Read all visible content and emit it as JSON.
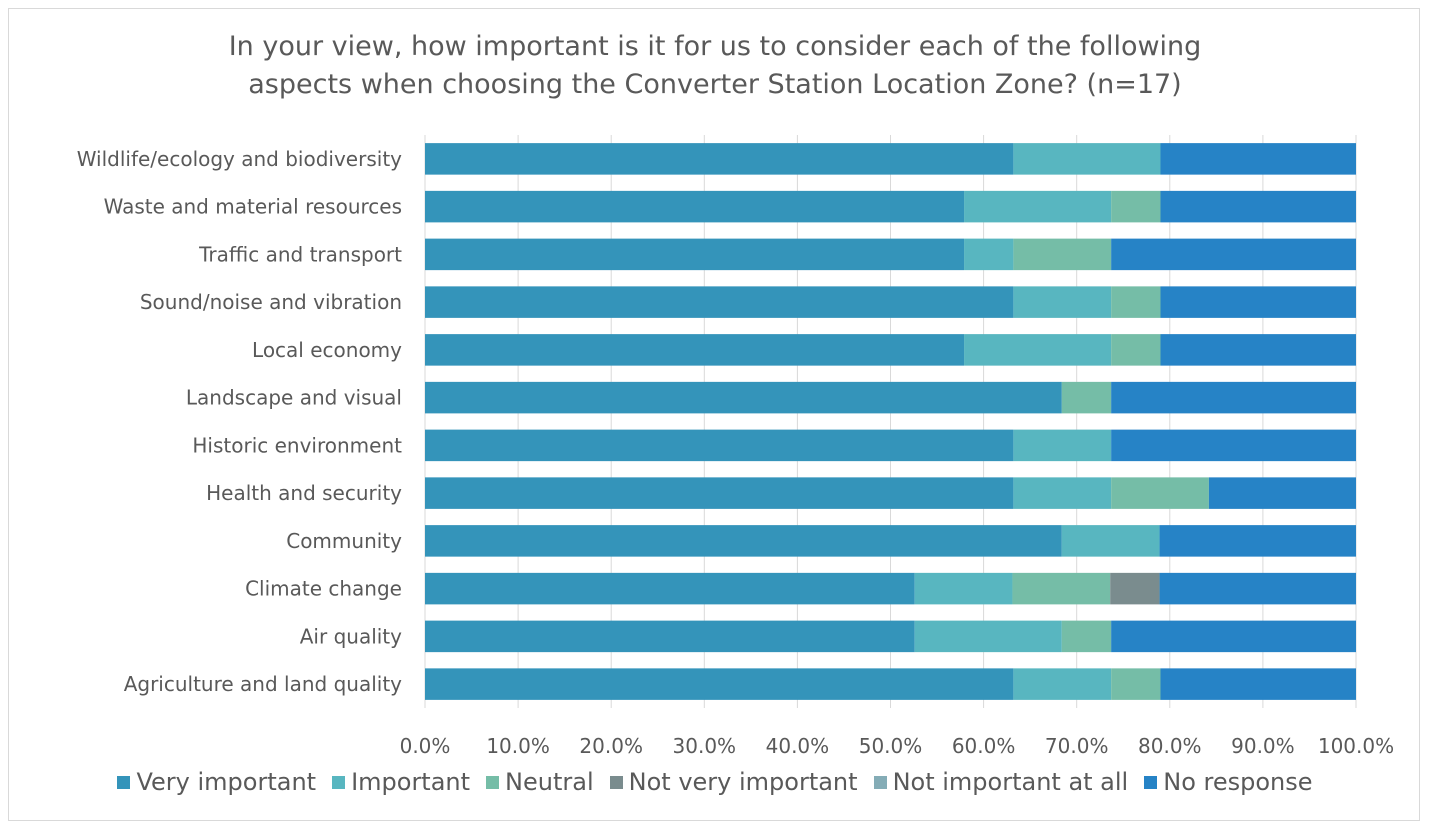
{
  "chart_data": {
    "type": "bar",
    "orientation": "horizontal",
    "stacked": true,
    "title": "In your view, how important is it for us to consider each of the following aspects when choosing the Converter Station Location Zone? (n=17)",
    "title_lines": [
      "In your view, how important is it for us to consider each of the following",
      "aspects when choosing the Converter Station Location Zone? (n=17)"
    ],
    "categories": [
      "Wildlife/ecology and biodiversity",
      "Waste and material resources",
      "Traffic and transport",
      "Sound/noise and vibration",
      "Local economy",
      "Landscape and visual",
      "Historic environment",
      "Health and security",
      "Community",
      "Climate change",
      "Air quality",
      "Agriculture and land quality"
    ],
    "series": [
      {
        "name": "Very important",
        "color": "#3494ba",
        "values": [
          63.2,
          57.9,
          57.9,
          63.2,
          57.9,
          68.4,
          63.2,
          63.2,
          68.4,
          52.6,
          52.6,
          63.2
        ]
      },
      {
        "name": "Important",
        "color": "#58b6c0",
        "values": [
          15.8,
          15.8,
          5.3,
          10.5,
          15.8,
          0,
          10.5,
          10.5,
          10.5,
          10.5,
          15.8,
          10.5
        ]
      },
      {
        "name": "Neutral",
        "color": "#75bda7",
        "values": [
          0,
          5.3,
          10.5,
          5.3,
          5.3,
          5.3,
          0,
          10.5,
          0,
          10.5,
          5.3,
          5.3
        ]
      },
      {
        "name": "Not very important",
        "color": "#7a8c8e",
        "values": [
          0,
          0,
          0,
          0,
          0,
          0,
          0,
          0,
          0,
          5.3,
          0,
          0
        ]
      },
      {
        "name": "Not important at all",
        "color": "#84acb6",
        "values": [
          0,
          0,
          0,
          0,
          0,
          0,
          0,
          0,
          0,
          0,
          0,
          0
        ]
      },
      {
        "name": "No response",
        "color": "#2683c6",
        "values": [
          21.0,
          21.0,
          26.3,
          21.0,
          21.0,
          26.3,
          26.3,
          15.8,
          21.1,
          21.1,
          26.3,
          21.0
        ]
      }
    ],
    "xlim": [
      0,
      100
    ],
    "x_ticks": [
      "0.0%",
      "10.0%",
      "20.0%",
      "30.0%",
      "40.0%",
      "50.0%",
      "60.0%",
      "70.0%",
      "80.0%",
      "90.0%",
      "100.0%"
    ],
    "grid": true,
    "legend_position": "bottom"
  }
}
